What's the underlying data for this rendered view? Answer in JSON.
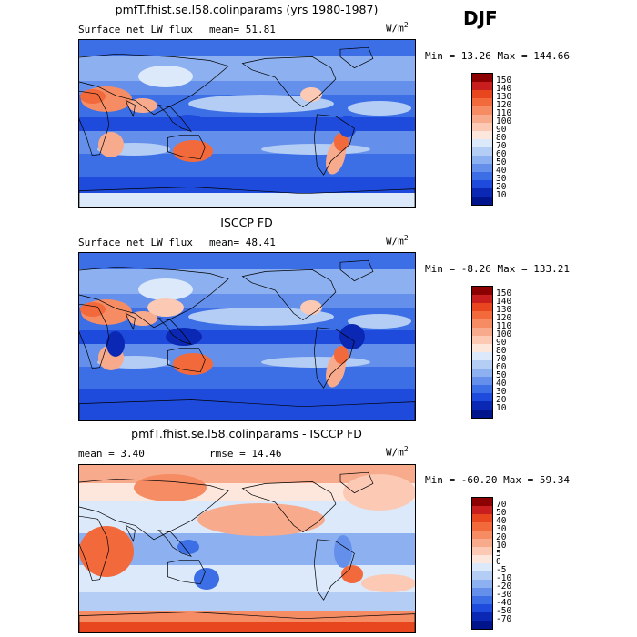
{
  "season": "DJF",
  "panels": [
    {
      "title": "pmfT.fhist.se.l58.colinparams (yrs 1980-1987)",
      "left_label": "Surface net LW flux",
      "mean_text": "mean=  51.81",
      "units": "W/m",
      "units_exp": "2",
      "minmax": "Min =  13.26 Max = 144.66",
      "levels": [
        "150",
        "140",
        "130",
        "120",
        "110",
        "100",
        "90",
        "80",
        "70",
        "60",
        "50",
        "40",
        "30",
        "20",
        "10"
      ],
      "colors": [
        "#8b0000",
        "#c81e1e",
        "#e8461e",
        "#f26a3c",
        "#f58c64",
        "#f8aa8c",
        "#fbc9b4",
        "#fde7dc",
        "#dbe9fa",
        "#b4cdf5",
        "#8cb0f0",
        "#6490eb",
        "#3c6ee6",
        "#1e4bdc",
        "#0a28b4",
        "#00148c"
      ],
      "map_style": "model"
    },
    {
      "title": "ISCCP FD",
      "left_label": "Surface net LW flux",
      "mean_text": "mean=  48.41",
      "units": "W/m",
      "units_exp": "2",
      "minmax": "Min =  -8.26 Max = 133.21",
      "levels": [
        "150",
        "140",
        "130",
        "120",
        "110",
        "100",
        "90",
        "80",
        "70",
        "60",
        "50",
        "40",
        "30",
        "20",
        "10"
      ],
      "colors": [
        "#8b0000",
        "#c81e1e",
        "#e8461e",
        "#f26a3c",
        "#f58c64",
        "#f8aa8c",
        "#fbc9b4",
        "#fde7dc",
        "#dbe9fa",
        "#b4cdf5",
        "#8cb0f0",
        "#6490eb",
        "#3c6ee6",
        "#1e4bdc",
        "#0a28b4",
        "#00148c"
      ],
      "map_style": "obs"
    },
    {
      "title": "pmfT.fhist.se.l58.colinparams - ISCCP FD",
      "left_label": "mean =   3.40",
      "mean_text": "rmse =  14.46",
      "units": "W/m",
      "units_exp": "2",
      "minmax": "Min = -60.20 Max =  59.34",
      "levels": [
        "70",
        "50",
        "40",
        "30",
        "20",
        "10",
        "5",
        "0",
        "-5",
        "-10",
        "-20",
        "-30",
        "-40",
        "-50",
        "-70"
      ],
      "colors": [
        "#8b0000",
        "#c81e1e",
        "#e8461e",
        "#f26a3c",
        "#f58c64",
        "#f8aa8c",
        "#fbc9b4",
        "#fde7dc",
        "#dbe9fa",
        "#b4cdf5",
        "#8cb0f0",
        "#6490eb",
        "#3c6ee6",
        "#1e4bdc",
        "#0a28b4",
        "#00148c"
      ],
      "map_style": "diff"
    }
  ],
  "chart_data": [
    {
      "type": "heatmap",
      "title": "pmfT.fhist.se.l58.colinparams (yrs 1980-1987)",
      "variable": "Surface net LW flux",
      "units": "W/m2",
      "season": "DJF",
      "mean": 51.81,
      "min": 13.26,
      "max": 144.66,
      "contour_levels": [
        10,
        20,
        30,
        40,
        50,
        60,
        70,
        80,
        90,
        100,
        110,
        120,
        130,
        140,
        150
      ]
    },
    {
      "type": "heatmap",
      "title": "ISCCP FD",
      "variable": "Surface net LW flux",
      "units": "W/m2",
      "season": "DJF",
      "mean": 48.41,
      "min": -8.26,
      "max": 133.21,
      "contour_levels": [
        10,
        20,
        30,
        40,
        50,
        60,
        70,
        80,
        90,
        100,
        110,
        120,
        130,
        140,
        150
      ]
    },
    {
      "type": "heatmap",
      "title": "pmfT.fhist.se.l58.colinparams - ISCCP FD",
      "units": "W/m2",
      "season": "DJF",
      "mean": 3.4,
      "rmse": 14.46,
      "min": -60.2,
      "max": 59.34,
      "contour_levels": [
        -70,
        -50,
        -40,
        -30,
        -20,
        -10,
        -5,
        0,
        5,
        10,
        20,
        30,
        40,
        50,
        70
      ]
    }
  ]
}
